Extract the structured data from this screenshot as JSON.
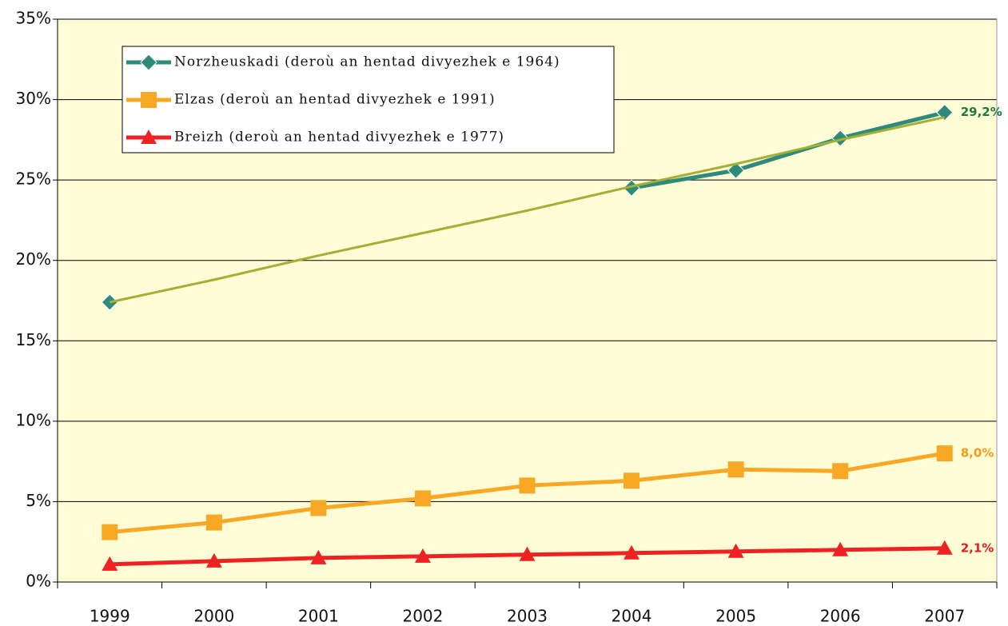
{
  "chart_data": {
    "type": "line",
    "categories": [
      "1999",
      "2000",
      "2001",
      "2002",
      "2003",
      "2004",
      "2005",
      "2006",
      "2007"
    ],
    "series": [
      {
        "name": "Norzheuskadi (deroù an hentad divyezhek e 1964)",
        "color": "#2e8b7a",
        "marker": "diamond",
        "values": [
          17.4,
          null,
          null,
          null,
          null,
          24.5,
          25.6,
          27.6,
          29.2
        ],
        "value_labels": [
          null,
          null,
          null,
          null,
          null,
          null,
          null,
          null,
          "29,2%"
        ],
        "label_color": "#1e7a3e"
      },
      {
        "name": "Elzas (deroù an hentad divyezhek e 1991)",
        "color": "#f9a825",
        "marker": "square",
        "values": [
          3.1,
          3.7,
          4.6,
          5.2,
          6.0,
          6.3,
          7.0,
          6.9,
          8.0
        ],
        "value_labels": [
          null,
          null,
          null,
          null,
          null,
          null,
          null,
          null,
          "8,0%"
        ],
        "label_color": "#f39c1a"
      },
      {
        "name": "Breizh (deroù an hentad divyezhek e 1977)",
        "color": "#ee2222",
        "marker": "triangle",
        "values": [
          1.1,
          1.3,
          1.5,
          1.6,
          1.7,
          1.8,
          1.9,
          2.0,
          2.1
        ],
        "value_labels": [
          null,
          null,
          null,
          null,
          null,
          null,
          null,
          null,
          "2,1%"
        ],
        "label_color": "#e02020"
      }
    ],
    "trendline": {
      "color": "#a3b034",
      "values": [
        17.4,
        18.8,
        20.3,
        21.7,
        23.1,
        24.6,
        26.0,
        27.5,
        28.9
      ]
    },
    "ylim": [
      0,
      35
    ],
    "yticks": [
      {
        "value": 0,
        "label": "0%"
      },
      {
        "value": 5,
        "label": "5%"
      },
      {
        "value": 10,
        "label": "10%"
      },
      {
        "value": 15,
        "label": "15%"
      },
      {
        "value": 20,
        "label": "20%"
      },
      {
        "value": 25,
        "label": "25%"
      },
      {
        "value": 30,
        "label": "30%"
      },
      {
        "value": 35,
        "label": "35%"
      }
    ],
    "grid": true,
    "legend": "top-left",
    "background": "#fffcd6"
  }
}
